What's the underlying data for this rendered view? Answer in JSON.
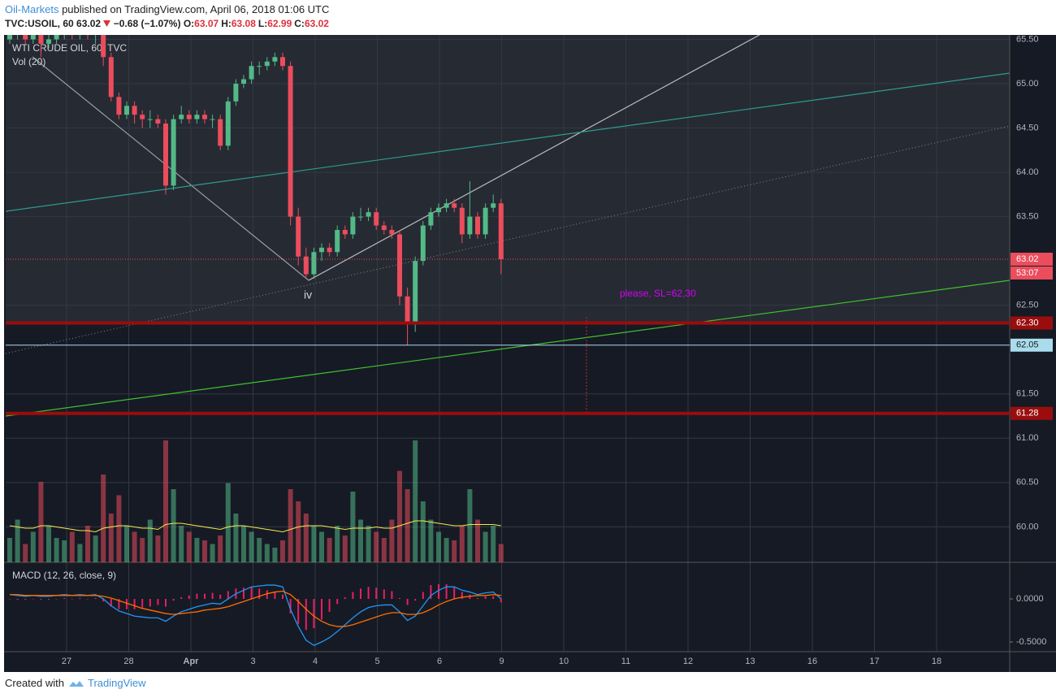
{
  "header": {
    "author": "Oil-Markets",
    "published": "published on TradingView.com, April 06, 2018 01:06 UTC"
  },
  "chart_data": [
    {
      "type": "candlestick",
      "symbol": "TVC:USOIL, 60",
      "last": "63.02",
      "change": "−0.68 (−1.07%)",
      "ohlc": [
        [
          "O:",
          "63.07"
        ],
        [
          "H:",
          "63.08"
        ],
        [
          "L:",
          "62.99"
        ],
        [
          "C:",
          "63.02"
        ]
      ],
      "title": "WTI CRUDE OIL, 60, TVC",
      "categories": [
        "27",
        "28",
        "Apr",
        "3",
        "4",
        "5",
        "6",
        "9",
        "10",
        "11",
        "12",
        "13",
        "16",
        "17",
        "18"
      ],
      "up_color": "#53b987",
      "down_color": "#eb4d5c",
      "ylim": [
        59.6,
        65.55
      ],
      "yticks": [
        {
          "value": 65.5,
          "label": "65.50"
        },
        {
          "value": 65,
          "label": "65.00"
        },
        {
          "value": 64.5,
          "label": "64.50"
        },
        {
          "value": 64,
          "label": "64.00"
        },
        {
          "value": 63.5,
          "label": "63.50"
        },
        {
          "value": 62.5,
          "label": "62.50"
        },
        {
          "value": 61.5,
          "label": "61.50"
        },
        {
          "value": 61,
          "label": "61.00"
        },
        {
          "value": 60.5,
          "label": "60.50"
        },
        {
          "value": 60,
          "label": "60.00"
        }
      ],
      "levels": [
        {
          "value": 63.02,
          "label": "63.02",
          "color": "#eb4d5c"
        },
        {
          "value": 62.3,
          "label": "62.30",
          "color": "#9b0d0d"
        },
        {
          "value": 62.05,
          "label": "62.05",
          "color": "#a9dcec"
        },
        {
          "value": 61.28,
          "label": "61.28",
          "color": "#9b0d0d"
        }
      ],
      "countdown": "53:07",
      "annotations": [
        "iv",
        "please, SL=62,30"
      ],
      "candles": [
        [
          65.5,
          65.6,
          65.45,
          65.55
        ],
        [
          65.55,
          65.65,
          65.5,
          65.6
        ],
        [
          65.6,
          65.65,
          65.45,
          65.5
        ],
        [
          65.5,
          65.6,
          65.45,
          65.55
        ],
        [
          65.55,
          65.6,
          65.3,
          65.45
        ],
        [
          65.45,
          65.55,
          65.4,
          65.5
        ],
        [
          65.5,
          65.6,
          65.45,
          65.55
        ],
        [
          65.55,
          65.65,
          65.5,
          65.6
        ],
        [
          65.6,
          65.65,
          65.5,
          65.55
        ],
        [
          65.55,
          65.65,
          65.5,
          65.6
        ],
        [
          65.6,
          65.65,
          65.5,
          65.55
        ],
        [
          65.55,
          65.65,
          65.45,
          65.6
        ],
        [
          65.6,
          65.65,
          65.2,
          65.3
        ],
        [
          65.3,
          65.35,
          64.8,
          64.85
        ],
        [
          64.85,
          64.9,
          64.6,
          64.65
        ],
        [
          64.65,
          64.8,
          64.6,
          64.75
        ],
        [
          64.75,
          64.8,
          64.55,
          64.65
        ],
        [
          64.65,
          64.7,
          64.5,
          64.6
        ],
        [
          64.6,
          64.7,
          64.5,
          64.6
        ],
        [
          64.6,
          64.65,
          64.5,
          64.55
        ],
        [
          64.55,
          64.6,
          63.75,
          63.85
        ],
        [
          63.85,
          64.65,
          63.8,
          64.6
        ],
        [
          64.6,
          64.75,
          64.55,
          64.65
        ],
        [
          64.65,
          64.7,
          64.55,
          64.6
        ],
        [
          64.6,
          64.7,
          64.55,
          64.65
        ],
        [
          64.65,
          64.7,
          64.55,
          64.6
        ],
        [
          64.6,
          64.65,
          64.5,
          64.6
        ],
        [
          64.6,
          64.65,
          64.25,
          64.3
        ],
        [
          64.3,
          64.85,
          64.25,
          64.8
        ],
        [
          64.8,
          65.05,
          64.75,
          65.0
        ],
        [
          65.0,
          65.1,
          64.95,
          65.05
        ],
        [
          65.05,
          65.25,
          65.0,
          65.2
        ],
        [
          65.2,
          65.25,
          65.1,
          65.2
        ],
        [
          65.2,
          65.3,
          65.15,
          65.25
        ],
        [
          65.25,
          65.35,
          65.2,
          65.3
        ],
        [
          65.3,
          65.35,
          65.15,
          65.2
        ],
        [
          65.2,
          65.25,
          63.4,
          63.5
        ],
        [
          63.5,
          63.6,
          62.95,
          63.05
        ],
        [
          63.05,
          63.15,
          62.8,
          62.85
        ],
        [
          62.85,
          63.15,
          62.8,
          63.1
        ],
        [
          63.1,
          63.2,
          63.0,
          63.15
        ],
        [
          63.15,
          63.2,
          63.05,
          63.1
        ],
        [
          63.1,
          63.4,
          63.05,
          63.35
        ],
        [
          63.35,
          63.4,
          63.25,
          63.3
        ],
        [
          63.3,
          63.55,
          63.25,
          63.5
        ],
        [
          63.5,
          63.6,
          63.45,
          63.5
        ],
        [
          63.5,
          63.6,
          63.45,
          63.55
        ],
        [
          63.55,
          63.6,
          63.35,
          63.4
        ],
        [
          63.4,
          63.45,
          63.3,
          63.35
        ],
        [
          63.35,
          63.4,
          63.25,
          63.3
        ],
        [
          63.3,
          63.35,
          62.5,
          62.6
        ],
        [
          62.6,
          62.7,
          62.05,
          62.3
        ],
        [
          62.3,
          63.05,
          62.2,
          63.0
        ],
        [
          63.0,
          63.45,
          62.95,
          63.4
        ],
        [
          63.4,
          63.6,
          63.35,
          63.55
        ],
        [
          63.55,
          63.65,
          63.5,
          63.6
        ],
        [
          63.6,
          63.7,
          63.55,
          63.65
        ],
        [
          63.65,
          63.7,
          63.55,
          63.6
        ],
        [
          63.6,
          63.65,
          63.2,
          63.3
        ],
        [
          63.3,
          63.9,
          63.25,
          63.5
        ],
        [
          63.5,
          63.55,
          63.25,
          63.3
        ],
        [
          63.3,
          63.65,
          63.25,
          63.6
        ],
        [
          63.6,
          63.75,
          63.55,
          63.65
        ],
        [
          63.65,
          63.7,
          62.85,
          63.02
        ]
      ]
    },
    {
      "type": "bar",
      "title": "Vol (20)",
      "ma_color": "#f5e94c",
      "values": [
        20,
        35,
        15,
        25,
        66,
        30,
        20,
        18,
        25,
        15,
        30,
        22,
        72,
        40,
        55,
        30,
        25,
        20,
        35,
        22,
        100,
        60,
        30,
        25,
        20,
        18,
        15,
        22,
        65,
        40,
        30,
        25,
        20,
        15,
        12,
        18,
        60,
        50,
        40,
        30,
        25,
        20,
        30,
        22,
        58,
        35,
        30,
        25,
        20,
        35,
        75,
        60,
        100,
        50,
        35,
        25,
        20,
        18,
        30,
        60,
        35,
        25,
        30,
        15
      ],
      "ma": [
        30,
        29,
        28,
        28,
        30,
        30,
        29,
        28,
        27,
        26,
        26,
        25,
        28,
        29,
        30,
        30,
        29,
        28,
        28,
        27,
        31,
        32,
        32,
        31,
        30,
        29,
        28,
        27,
        29,
        30,
        30,
        29,
        28,
        27,
        26,
        25,
        27,
        29,
        30,
        30,
        30,
        29,
        28,
        27,
        28,
        28,
        28,
        29,
        28,
        28,
        30,
        32,
        34,
        34,
        33,
        32,
        31,
        30,
        30,
        31,
        31,
        31,
        31,
        30
      ]
    },
    {
      "type": "macd",
      "title": "MACD (12, 26, close, 9)",
      "macd_color": "#2196f3",
      "signal_color": "#ff6d00",
      "histogram_color": "#e91e63",
      "ylim": [
        -0.613,
        0.425
      ],
      "yticks": [
        {
          "value": 0,
          "label": "0.0000"
        },
        {
          "value": -0.5,
          "label": "-0.5000"
        }
      ],
      "macd": [
        0.05,
        0.04,
        0.03,
        0.04,
        0.03,
        0.03,
        0.04,
        0.05,
        0.04,
        0.05,
        0.04,
        0.05,
        0.0,
        -0.08,
        -0.14,
        -0.17,
        -0.2,
        -0.21,
        -0.22,
        -0.22,
        -0.26,
        -0.2,
        -0.15,
        -0.12,
        -0.09,
        -0.07,
        -0.05,
        -0.06,
        0.0,
        0.06,
        0.1,
        0.14,
        0.15,
        0.16,
        0.16,
        0.14,
        -0.12,
        -0.32,
        -0.48,
        -0.54,
        -0.5,
        -0.45,
        -0.38,
        -0.3,
        -0.22,
        -0.15,
        -0.1,
        -0.08,
        -0.07,
        -0.07,
        -0.15,
        -0.25,
        -0.2,
        -0.08,
        0.04,
        0.1,
        0.14,
        0.14,
        0.1,
        0.08,
        0.05,
        0.07,
        0.08,
        0.0
      ],
      "signal": [
        0.05,
        0.05,
        0.04,
        0.04,
        0.04,
        0.04,
        0.04,
        0.04,
        0.04,
        0.04,
        0.04,
        0.04,
        0.03,
        0.01,
        -0.02,
        -0.05,
        -0.08,
        -0.11,
        -0.13,
        -0.15,
        -0.17,
        -0.18,
        -0.17,
        -0.16,
        -0.15,
        -0.13,
        -0.12,
        -0.11,
        -0.09,
        -0.06,
        -0.03,
        0.0,
        0.03,
        0.06,
        0.08,
        0.09,
        0.05,
        -0.03,
        -0.12,
        -0.2,
        -0.26,
        -0.3,
        -0.32,
        -0.32,
        -0.3,
        -0.27,
        -0.24,
        -0.21,
        -0.18,
        -0.16,
        -0.16,
        -0.18,
        -0.18,
        -0.16,
        -0.12,
        -0.07,
        -0.03,
        0.0,
        0.02,
        0.03,
        0.04,
        0.04,
        0.05,
        0.04
      ],
      "histogram": [
        0,
        -0.01,
        -0.01,
        0,
        -0.01,
        -0.01,
        0,
        0.01,
        0,
        0.01,
        0,
        0.01,
        -0.03,
        -0.09,
        -0.12,
        -0.12,
        -0.12,
        -0.1,
        -0.09,
        -0.07,
        -0.09,
        -0.02,
        0.02,
        0.04,
        0.06,
        0.06,
        0.07,
        0.05,
        0.09,
        0.12,
        0.13,
        0.14,
        0.12,
        0.1,
        0.08,
        0.05,
        -0.17,
        -0.29,
        -0.36,
        -0.34,
        -0.24,
        -0.15,
        -0.06,
        0.02,
        0.08,
        0.12,
        0.14,
        0.13,
        0.11,
        0.09,
        0.01,
        -0.07,
        -0.02,
        0.08,
        0.16,
        0.17,
        0.17,
        0.14,
        0.08,
        0.05,
        0.01,
        0.03,
        0.03,
        -0.04
      ]
    }
  ],
  "footer": {
    "created": "Created with",
    "brand": "TradingView"
  }
}
